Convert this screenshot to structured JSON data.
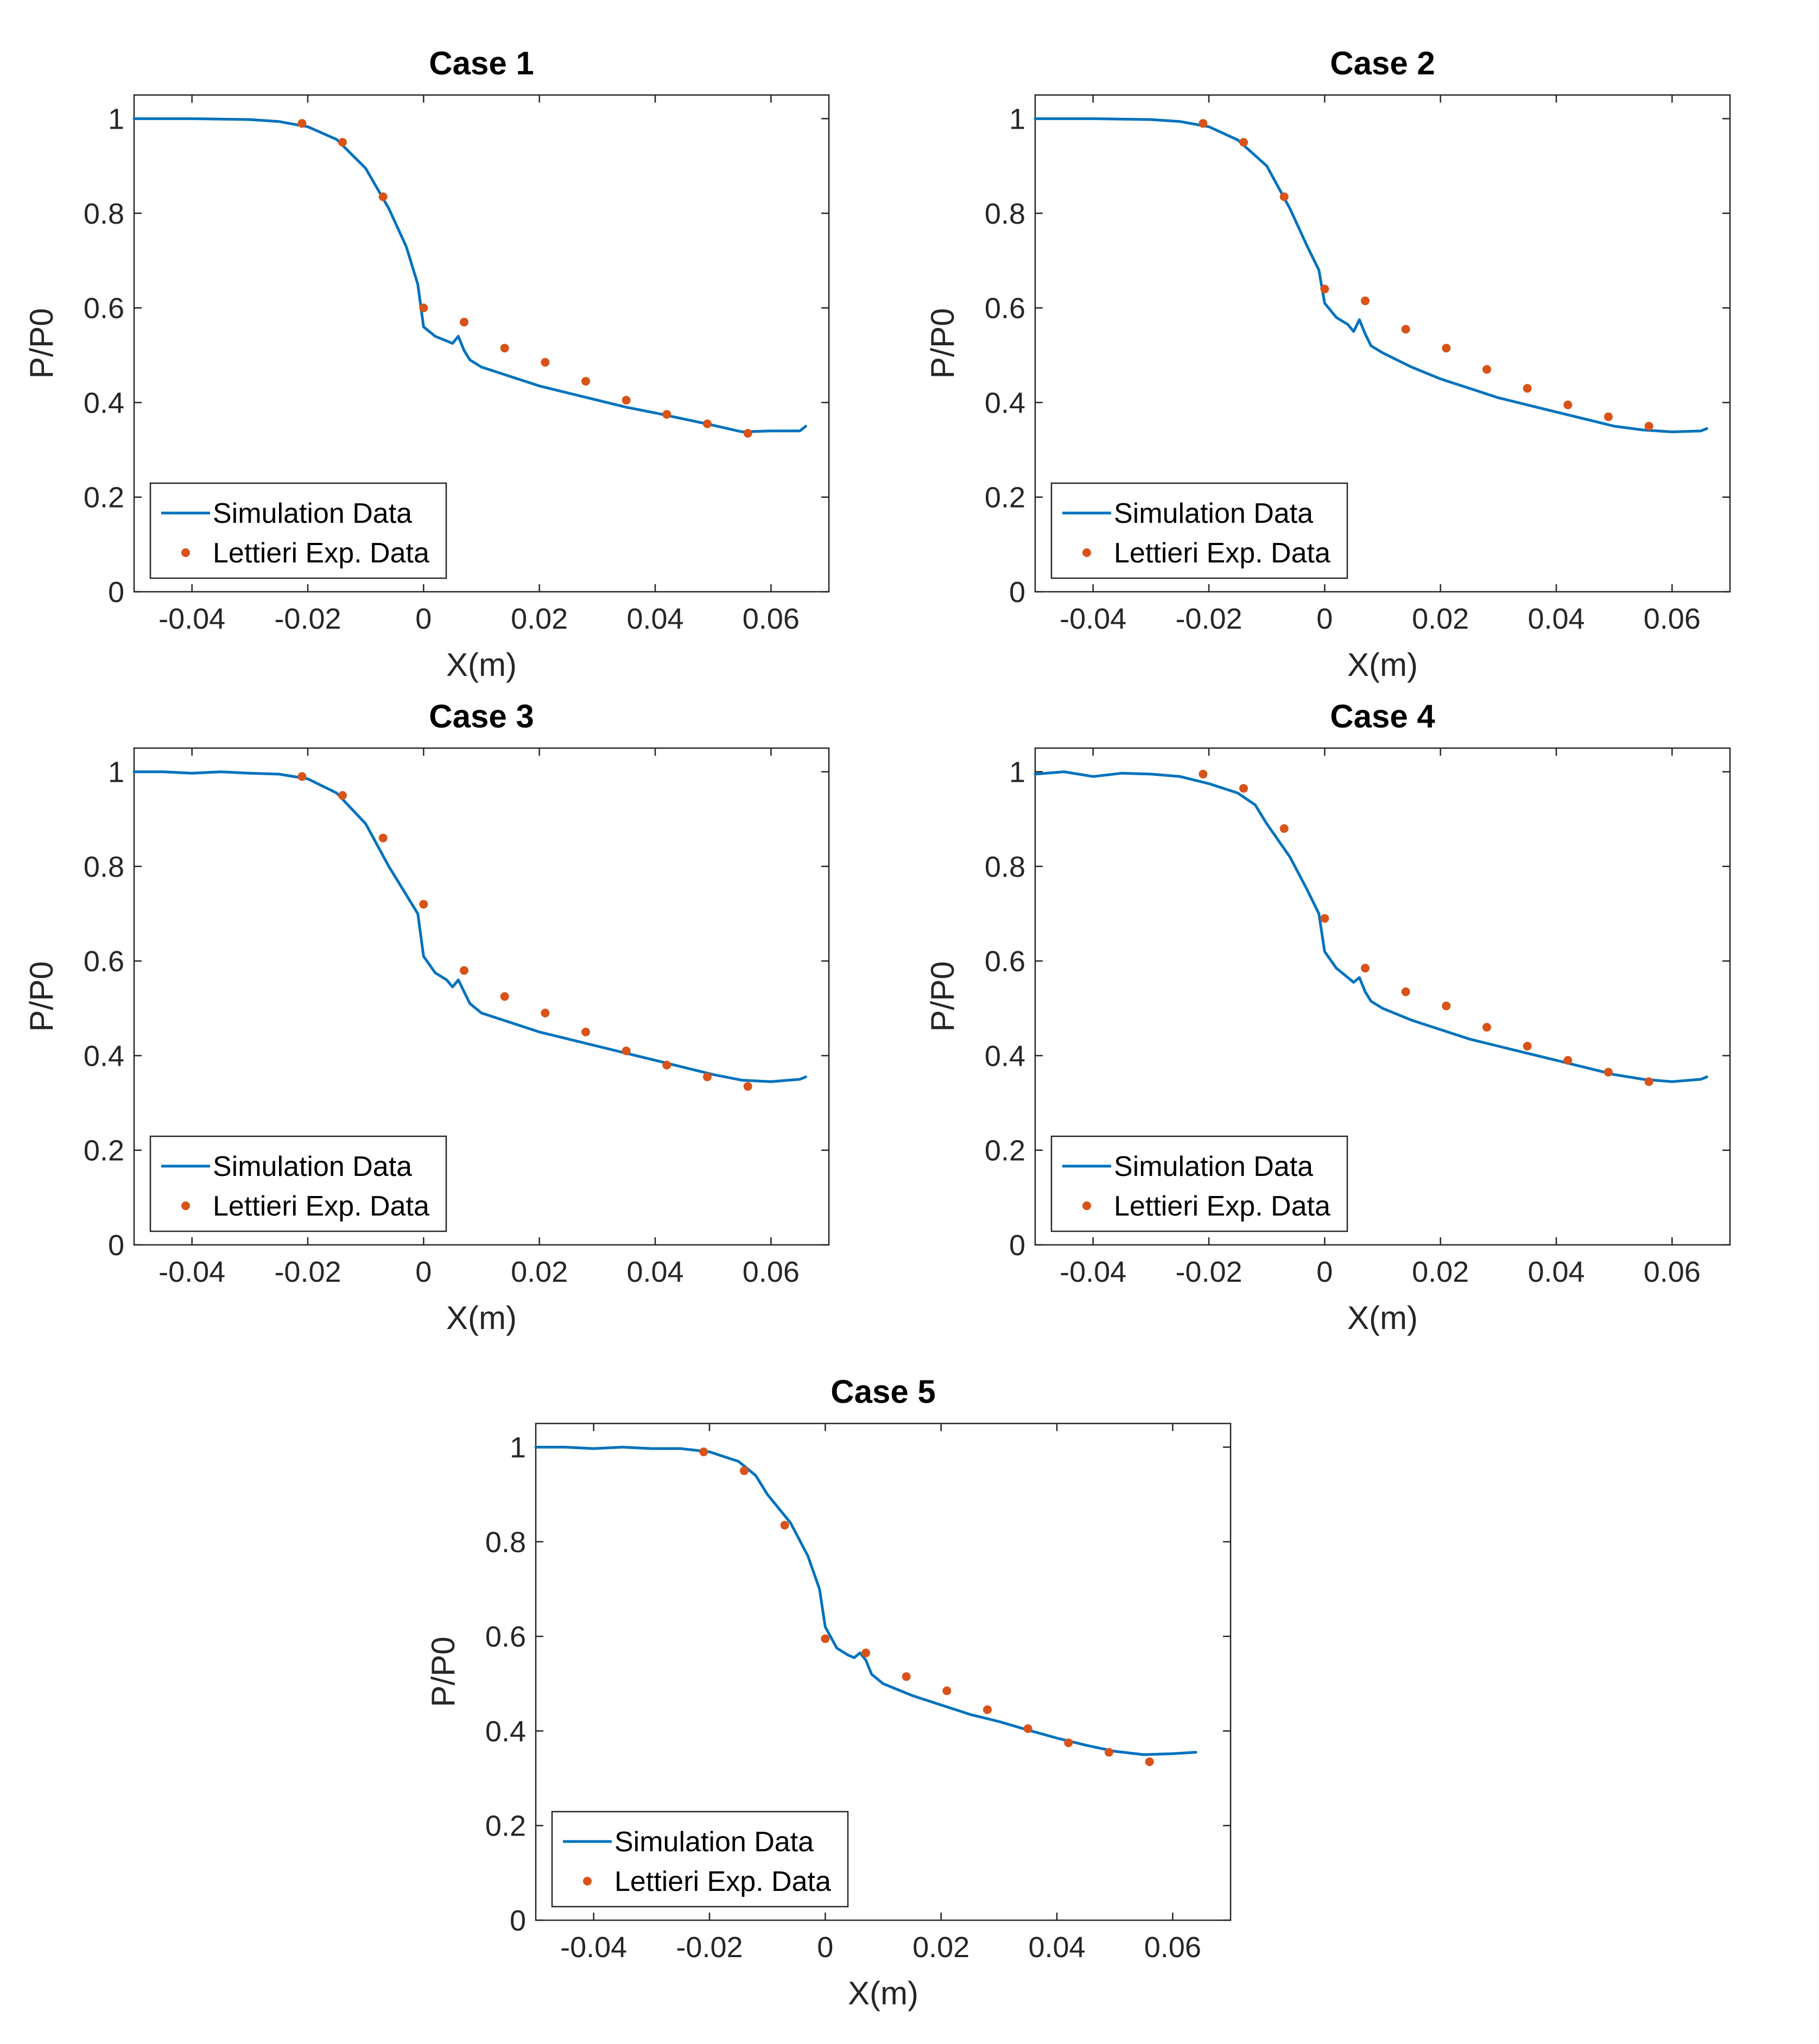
{
  "figure_title": "",
  "colors": {
    "simulation": "#0072BD",
    "experiment": "#D95319",
    "axes": "#262626"
  },
  "chart_data": [
    {
      "type": "line",
      "title": "Case 1",
      "xlabel": "X(m)",
      "ylabel": "P/P0",
      "xlim": [
        -0.05,
        0.07
      ],
      "ylim": [
        0,
        1.05
      ],
      "xticks": [
        -0.04,
        -0.02,
        0,
        0.02,
        0.04,
        0.06
      ],
      "xtick_labels": [
        "-0.04",
        "-0.02",
        "0",
        "0.02",
        "0.04",
        "0.06"
      ],
      "yticks": [
        0,
        0.2,
        0.4,
        0.6,
        0.8,
        1
      ],
      "ytick_labels": [
        "0",
        "0.2",
        "0.4",
        "0.6",
        "0.8",
        "1"
      ],
      "legend": [
        "Simulation Data",
        "Lettieri Exp. Data"
      ],
      "legend_location": "bottom-left",
      "series": [
        {
          "name": "Simulation Data",
          "style": "line",
          "x": [
            -0.05,
            -0.04,
            -0.03,
            -0.025,
            -0.02,
            -0.015,
            -0.01,
            -0.006,
            -0.003,
            -0.001,
            0,
            0.002,
            0.004,
            0.005,
            0.006,
            0.007,
            0.008,
            0.01,
            0.015,
            0.02,
            0.025,
            0.03,
            0.035,
            0.04,
            0.045,
            0.05,
            0.055,
            0.06,
            0.065,
            0.066
          ],
          "y": [
            1.0,
            1.0,
            0.998,
            0.994,
            0.983,
            0.956,
            0.895,
            0.81,
            0.73,
            0.65,
            0.56,
            0.54,
            0.53,
            0.525,
            0.54,
            0.51,
            0.49,
            0.475,
            0.455,
            0.435,
            0.42,
            0.405,
            0.39,
            0.378,
            0.365,
            0.352,
            0.338,
            0.34,
            0.34,
            0.35
          ]
        },
        {
          "name": "Lettieri Exp. Data",
          "style": "markers",
          "x": [
            -0.021,
            -0.014,
            -0.007,
            0.0,
            0.007,
            0.014,
            0.021,
            0.028,
            0.035,
            0.042,
            0.049,
            0.056
          ],
          "y": [
            0.99,
            0.95,
            0.835,
            0.6,
            0.57,
            0.515,
            0.485,
            0.445,
            0.405,
            0.375,
            0.355,
            0.335
          ]
        }
      ]
    },
    {
      "type": "line",
      "title": "Case 2",
      "xlabel": "X(m)",
      "ylabel": "P/P0",
      "xlim": [
        -0.05,
        0.07
      ],
      "ylim": [
        0,
        1.05
      ],
      "xticks": [
        -0.04,
        -0.02,
        0,
        0.02,
        0.04,
        0.06
      ],
      "xtick_labels": [
        "-0.04",
        "-0.02",
        "0",
        "0.02",
        "0.04",
        "0.06"
      ],
      "yticks": [
        0,
        0.2,
        0.4,
        0.6,
        0.8,
        1
      ],
      "ytick_labels": [
        "0",
        "0.2",
        "0.4",
        "0.6",
        "0.8",
        "1"
      ],
      "legend": [
        "Simulation Data",
        "Lettieri Exp. Data"
      ],
      "legend_location": "bottom-left",
      "series": [
        {
          "name": "Simulation Data",
          "style": "line",
          "x": [
            -0.05,
            -0.04,
            -0.03,
            -0.025,
            -0.02,
            -0.015,
            -0.01,
            -0.006,
            -0.003,
            -0.001,
            0,
            0.002,
            0.004,
            0.005,
            0.006,
            0.007,
            0.008,
            0.01,
            0.015,
            0.02,
            0.025,
            0.03,
            0.035,
            0.04,
            0.045,
            0.05,
            0.055,
            0.06,
            0.065,
            0.066
          ],
          "y": [
            1.0,
            1.0,
            0.998,
            0.994,
            0.983,
            0.955,
            0.9,
            0.81,
            0.73,
            0.68,
            0.61,
            0.58,
            0.565,
            0.55,
            0.575,
            0.545,
            0.52,
            0.505,
            0.475,
            0.45,
            0.43,
            0.41,
            0.395,
            0.38,
            0.365,
            0.35,
            0.342,
            0.338,
            0.34,
            0.345
          ]
        },
        {
          "name": "Lettieri Exp. Data",
          "style": "markers",
          "x": [
            -0.021,
            -0.014,
            -0.007,
            0.0,
            0.007,
            0.014,
            0.021,
            0.028,
            0.035,
            0.042,
            0.049,
            0.056
          ],
          "y": [
            0.99,
            0.95,
            0.835,
            0.64,
            0.615,
            0.555,
            0.515,
            0.47,
            0.43,
            0.395,
            0.37,
            0.35
          ]
        }
      ]
    },
    {
      "type": "line",
      "title": "Case 3",
      "xlabel": "X(m)",
      "ylabel": "P/P0",
      "xlim": [
        -0.05,
        0.07
      ],
      "ylim": [
        0,
        1.05
      ],
      "xticks": [
        -0.04,
        -0.02,
        0,
        0.02,
        0.04,
        0.06
      ],
      "xtick_labels": [
        "-0.04",
        "-0.02",
        "0",
        "0.02",
        "0.04",
        "0.06"
      ],
      "yticks": [
        0,
        0.2,
        0.4,
        0.6,
        0.8,
        1
      ],
      "ytick_labels": [
        "0",
        "0.2",
        "0.4",
        "0.6",
        "0.8",
        "1"
      ],
      "legend": [
        "Simulation Data",
        "Lettieri Exp. Data"
      ],
      "legend_location": "bottom-left",
      "series": [
        {
          "name": "Simulation Data",
          "style": "line",
          "x": [
            -0.05,
            -0.045,
            -0.04,
            -0.035,
            -0.03,
            -0.025,
            -0.02,
            -0.015,
            -0.01,
            -0.006,
            -0.003,
            -0.001,
            0,
            0.002,
            0.004,
            0.005,
            0.006,
            0.007,
            0.008,
            0.01,
            0.015,
            0.02,
            0.025,
            0.03,
            0.035,
            0.04,
            0.045,
            0.05,
            0.055,
            0.06,
            0.065,
            0.066
          ],
          "y": [
            1.0,
            1.0,
            0.997,
            1.0,
            0.997,
            0.995,
            0.985,
            0.955,
            0.89,
            0.8,
            0.74,
            0.7,
            0.61,
            0.575,
            0.56,
            0.545,
            0.56,
            0.535,
            0.51,
            0.49,
            0.47,
            0.45,
            0.435,
            0.42,
            0.405,
            0.39,
            0.375,
            0.36,
            0.348,
            0.345,
            0.35,
            0.355
          ]
        },
        {
          "name": "Lettieri Exp. Data",
          "style": "markers",
          "x": [
            -0.021,
            -0.014,
            -0.007,
            0.0,
            0.007,
            0.014,
            0.021,
            0.028,
            0.035,
            0.042,
            0.049,
            0.056
          ],
          "y": [
            0.99,
            0.95,
            0.86,
            0.72,
            0.58,
            0.525,
            0.49,
            0.45,
            0.41,
            0.38,
            0.355,
            0.335
          ]
        }
      ]
    },
    {
      "type": "line",
      "title": "Case 4",
      "xlabel": "X(m)",
      "ylabel": "P/P0",
      "xlim": [
        -0.05,
        0.07
      ],
      "ylim": [
        0,
        1.05
      ],
      "xticks": [
        -0.04,
        -0.02,
        0,
        0.02,
        0.04,
        0.06
      ],
      "xtick_labels": [
        "-0.04",
        "-0.02",
        "0",
        "0.02",
        "0.04",
        "0.06"
      ],
      "yticks": [
        0,
        0.2,
        0.4,
        0.6,
        0.8,
        1
      ],
      "ytick_labels": [
        "0",
        "0.2",
        "0.4",
        "0.6",
        "0.8",
        "1"
      ],
      "legend": [
        "Simulation Data",
        "Lettieri Exp. Data"
      ],
      "legend_location": "bottom-left",
      "series": [
        {
          "name": "Simulation Data",
          "style": "line",
          "x": [
            -0.05,
            -0.045,
            -0.04,
            -0.035,
            -0.03,
            -0.025,
            -0.02,
            -0.015,
            -0.012,
            -0.01,
            -0.006,
            -0.003,
            -0.001,
            0,
            0.002,
            0.004,
            0.005,
            0.006,
            0.007,
            0.008,
            0.01,
            0.015,
            0.02,
            0.025,
            0.03,
            0.035,
            0.04,
            0.045,
            0.05,
            0.055,
            0.06,
            0.065,
            0.066
          ],
          "y": [
            0.995,
            1.0,
            0.99,
            0.997,
            0.995,
            0.99,
            0.975,
            0.955,
            0.93,
            0.89,
            0.82,
            0.75,
            0.7,
            0.62,
            0.585,
            0.565,
            0.555,
            0.565,
            0.535,
            0.515,
            0.5,
            0.475,
            0.455,
            0.435,
            0.42,
            0.405,
            0.39,
            0.375,
            0.36,
            0.35,
            0.345,
            0.35,
            0.355
          ]
        },
        {
          "name": "Lettieri Exp. Data",
          "style": "markers",
          "x": [
            -0.021,
            -0.014,
            -0.007,
            0.0,
            0.007,
            0.014,
            0.021,
            0.028,
            0.035,
            0.042,
            0.049,
            0.056
          ],
          "y": [
            0.995,
            0.965,
            0.88,
            0.69,
            0.585,
            0.535,
            0.505,
            0.46,
            0.42,
            0.39,
            0.365,
            0.345
          ]
        }
      ]
    },
    {
      "type": "line",
      "title": "Case 5",
      "xlabel": "X(m)",
      "ylabel": "P/P0",
      "xlim": [
        -0.05,
        0.07
      ],
      "ylim": [
        0,
        1.05
      ],
      "xticks": [
        -0.04,
        -0.02,
        0,
        0.02,
        0.04,
        0.06
      ],
      "xtick_labels": [
        "-0.04",
        "-0.02",
        "0",
        "0.02",
        "0.04",
        "0.06"
      ],
      "yticks": [
        0,
        0.2,
        0.4,
        0.6,
        0.8,
        1
      ],
      "ytick_labels": [
        "0",
        "0.2",
        "0.4",
        "0.6",
        "0.8",
        "1"
      ],
      "legend": [
        "Simulation Data",
        "Lettieri Exp. Data"
      ],
      "legend_location": "bottom-left",
      "series": [
        {
          "name": "Simulation Data",
          "style": "line",
          "x": [
            -0.05,
            -0.045,
            -0.04,
            -0.035,
            -0.03,
            -0.025,
            -0.02,
            -0.015,
            -0.012,
            -0.01,
            -0.006,
            -0.003,
            -0.001,
            0,
            0.002,
            0.004,
            0.005,
            0.006,
            0.007,
            0.008,
            0.01,
            0.015,
            0.02,
            0.025,
            0.03,
            0.035,
            0.04,
            0.045,
            0.05,
            0.055,
            0.06,
            0.064
          ],
          "y": [
            1.0,
            1.0,
            0.997,
            1.0,
            0.997,
            0.997,
            0.99,
            0.97,
            0.94,
            0.9,
            0.84,
            0.77,
            0.7,
            0.62,
            0.575,
            0.56,
            0.555,
            0.565,
            0.55,
            0.52,
            0.5,
            0.475,
            0.455,
            0.435,
            0.42,
            0.402,
            0.385,
            0.37,
            0.357,
            0.35,
            0.352,
            0.355
          ]
        },
        {
          "name": "Lettieri Exp. Data",
          "style": "markers",
          "x": [
            -0.021,
            -0.014,
            -0.007,
            0.0,
            0.007,
            0.014,
            0.021,
            0.028,
            0.035,
            0.042,
            0.049,
            0.056
          ],
          "y": [
            0.99,
            0.95,
            0.835,
            0.595,
            0.565,
            0.515,
            0.485,
            0.445,
            0.405,
            0.375,
            0.355,
            0.335
          ]
        }
      ]
    }
  ]
}
